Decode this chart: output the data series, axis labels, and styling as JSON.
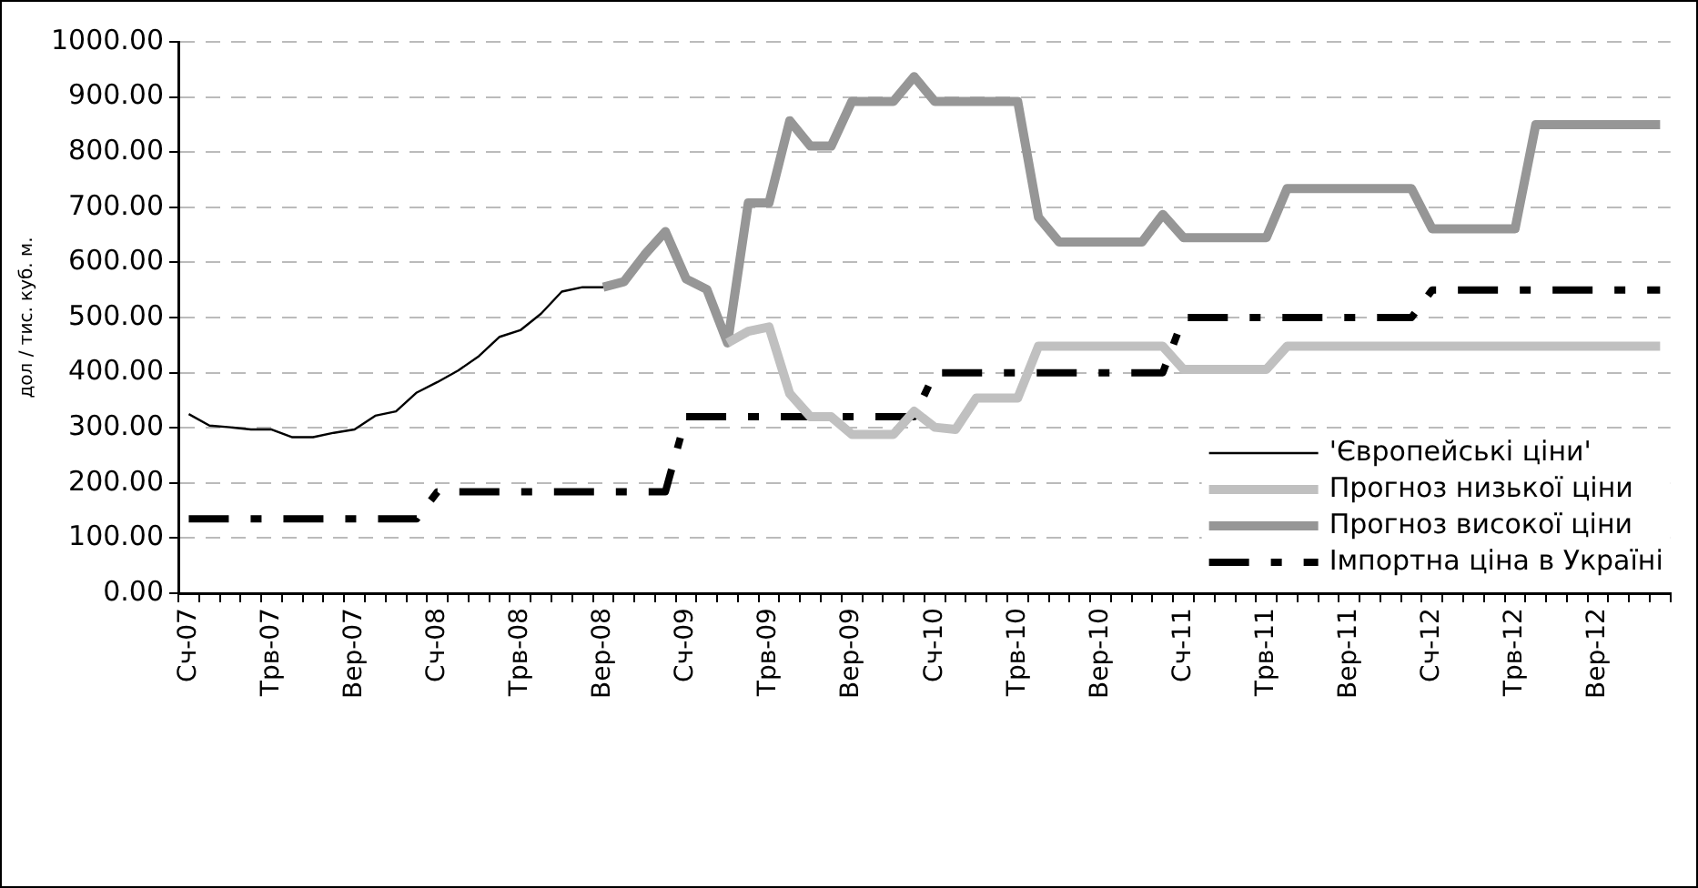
{
  "chart_data": {
    "type": "line",
    "ylabel": "дол / тис. куб. м.",
    "categories": [
      "Сч-07",
      null,
      null,
      null,
      "Трв-07",
      null,
      null,
      null,
      "Вер-07",
      null,
      null,
      null,
      "Сч-08",
      null,
      null,
      null,
      "Трв-08",
      null,
      null,
      null,
      "Вер-08",
      null,
      null,
      null,
      "Сч-09",
      null,
      null,
      null,
      "Трв-09",
      null,
      null,
      null,
      "Вер-09",
      null,
      null,
      null,
      "Сч-10",
      null,
      null,
      null,
      "Трв-10",
      null,
      null,
      null,
      "Вер-10",
      null,
      null,
      null,
      "Сч-11",
      null,
      null,
      null,
      "Трв-11",
      null,
      null,
      null,
      "Вер-11",
      null,
      null,
      null,
      "Сч-12",
      null,
      null,
      null,
      "Трв-12",
      null,
      null,
      null,
      "Вер-12",
      null,
      null,
      null
    ],
    "series": [
      {
        "name": "'Європейські ціни'",
        "color": "#000000",
        "line_style": "solid",
        "values": [
          325,
          304,
          301,
          297,
          297,
          283,
          283,
          291,
          297,
          322,
          330,
          364,
          383,
          404,
          430,
          465,
          477,
          507,
          547,
          555,
          555,
          null,
          null,
          null,
          null,
          null,
          null,
          null,
          null,
          null,
          null,
          null,
          null,
          null,
          null,
          null,
          null,
          null,
          null,
          null,
          null,
          null,
          null,
          null,
          null,
          null,
          null,
          null,
          null,
          null,
          null,
          null,
          null,
          null,
          null,
          null,
          null,
          null,
          null,
          null,
          null,
          null,
          null,
          null,
          null,
          null,
          null,
          null,
          null,
          null,
          null,
          null
        ]
      },
      {
        "name": "Прогноз низької ціни",
        "color": "#c0c0c0",
        "line_style": "solid",
        "values": [
          null,
          null,
          null,
          null,
          null,
          null,
          null,
          null,
          null,
          null,
          null,
          null,
          null,
          null,
          null,
          null,
          null,
          null,
          null,
          null,
          null,
          null,
          null,
          null,
          null,
          null,
          454,
          475,
          483,
          362,
          320,
          320,
          288,
          288,
          288,
          330,
          301,
          297,
          354,
          354,
          354,
          448,
          448,
          448,
          448,
          448,
          448,
          448,
          406,
          406,
          406,
          406,
          406,
          448,
          448,
          448,
          448,
          448,
          448,
          448,
          448,
          448,
          448,
          448,
          448,
          448,
          448,
          448,
          448,
          448,
          448,
          448
        ]
      },
      {
        "name": "Прогноз високої ціни",
        "color": "#969696",
        "line_style": "solid",
        "values": [
          null,
          null,
          null,
          null,
          null,
          null,
          null,
          null,
          null,
          null,
          null,
          null,
          null,
          null,
          null,
          null,
          null,
          null,
          null,
          null,
          555,
          565,
          614,
          656,
          570,
          551,
          454,
          708,
          708,
          857,
          811,
          811,
          892,
          892,
          892,
          937,
          892,
          892,
          892,
          892,
          892,
          682,
          637,
          637,
          637,
          637,
          637,
          687,
          645,
          645,
          645,
          645,
          645,
          734,
          734,
          734,
          734,
          734,
          734,
          734,
          661,
          661,
          661,
          661,
          661,
          850,
          850,
          850,
          850,
          850,
          850,
          850
        ]
      },
      {
        "name": "Імпортна ціна в Україні",
        "color": "#000000",
        "line_style": "dashed",
        "values": [
          135,
          135,
          135,
          135,
          135,
          135,
          135,
          135,
          135,
          135,
          135,
          135,
          184,
          184,
          184,
          184,
          184,
          184,
          184,
          184,
          184,
          184,
          184,
          184,
          320,
          320,
          320,
          320,
          320,
          320,
          320,
          320,
          320,
          320,
          320,
          320,
          400,
          400,
          400,
          400,
          400,
          400,
          400,
          400,
          400,
          400,
          400,
          400,
          500,
          500,
          500,
          500,
          500,
          500,
          500,
          500,
          500,
          500,
          500,
          500,
          550,
          550,
          550,
          550,
          550,
          550,
          550,
          550,
          550,
          550,
          550,
          550
        ]
      }
    ],
    "ylim": [
      0,
      1000
    ],
    "yticks": [
      {
        "value": 0,
        "label": "0.00"
      },
      {
        "value": 100,
        "label": "100.00"
      },
      {
        "value": 200,
        "label": "200.00"
      },
      {
        "value": 300,
        "label": "300.00"
      },
      {
        "value": 400,
        "label": "400.00"
      },
      {
        "value": 500,
        "label": "500.00"
      },
      {
        "value": 600,
        "label": "600.00"
      },
      {
        "value": 700,
        "label": "700.00"
      },
      {
        "value": 800,
        "label": "800.00"
      },
      {
        "value": 900,
        "label": "900.00"
      },
      {
        "value": 1000,
        "label": "1000.00"
      }
    ],
    "grid": "y",
    "legend": "bottom right",
    "marker": "none"
  }
}
